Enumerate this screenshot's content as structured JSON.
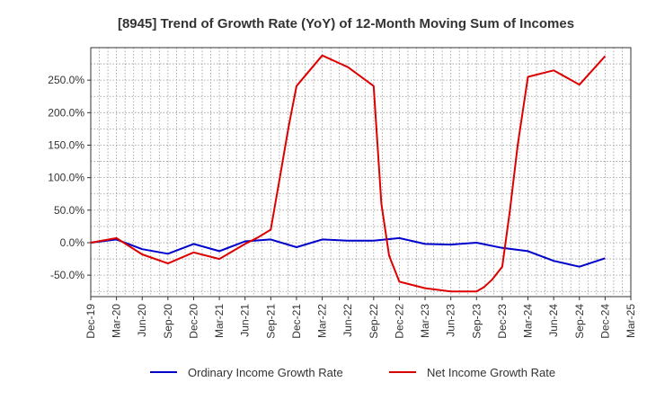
{
  "chart_data": {
    "type": "line",
    "title": "[8945]  Trend of Growth Rate (YoY) of 12-Month Moving Sum of Incomes",
    "xlabel": "",
    "ylabel": "",
    "x_tick_labels": [
      "Dec-19",
      "Mar-20",
      "Jun-20",
      "Sep-20",
      "Dec-20",
      "Mar-21",
      "Jun-21",
      "Sep-21",
      "Dec-21",
      "Mar-22",
      "Jun-22",
      "Sep-22",
      "Dec-22",
      "Mar-23",
      "Jun-23",
      "Sep-23",
      "Dec-23",
      "Mar-24",
      "Jun-24",
      "Sep-24",
      "Dec-24",
      "Mar-25"
    ],
    "y_tick_values": [
      -50,
      0,
      50,
      100,
      150,
      200,
      250
    ],
    "y_tick_labels": [
      "-50.0%",
      "0.0%",
      "50.0%",
      "100.0%",
      "150.0%",
      "200.0%",
      "250.0%"
    ],
    "ylim": [
      -83,
      300
    ],
    "x_range_quarters": [
      0,
      21
    ],
    "grid": true,
    "legend_position": "bottom",
    "series": [
      {
        "name": "Ordinary Income Growth Rate",
        "color": "#0000cc",
        "points": [
          [
            0,
            0
          ],
          [
            1,
            5
          ],
          [
            2,
            -10
          ],
          [
            3,
            -17
          ],
          [
            4,
            -2
          ],
          [
            5,
            -13
          ],
          [
            6,
            2
          ],
          [
            7,
            5
          ],
          [
            8,
            -7
          ],
          [
            9,
            5
          ],
          [
            10,
            3
          ],
          [
            11,
            3
          ],
          [
            12,
            7
          ],
          [
            13,
            -2
          ],
          [
            14,
            -3
          ],
          [
            15,
            0
          ],
          [
            16,
            -8
          ],
          [
            17,
            -13
          ],
          [
            18,
            -28
          ],
          [
            19,
            -37
          ],
          [
            20,
            -24
          ]
        ]
      },
      {
        "name": "Net Income Growth Rate",
        "color": "#dd0000",
        "points": [
          [
            0,
            0
          ],
          [
            1,
            7
          ],
          [
            2,
            -18
          ],
          [
            3,
            -32
          ],
          [
            4,
            -15
          ],
          [
            5,
            -25
          ],
          [
            6,
            -2
          ],
          [
            6.5,
            8
          ],
          [
            7,
            20
          ],
          [
            7.35,
            100
          ],
          [
            7.7,
            180
          ],
          [
            8,
            241
          ],
          [
            9,
            288
          ],
          [
            10,
            270
          ],
          [
            11,
            241
          ],
          [
            11.3,
            60
          ],
          [
            11.6,
            -20
          ],
          [
            12,
            -60
          ],
          [
            13,
            -70
          ],
          [
            14,
            -75
          ],
          [
            15,
            -75
          ],
          [
            15.3,
            -68
          ],
          [
            15.6,
            -57
          ],
          [
            16,
            -37
          ],
          [
            16.3,
            50
          ],
          [
            16.6,
            150
          ],
          [
            17,
            255
          ],
          [
            18,
            265
          ],
          [
            19,
            243
          ],
          [
            20,
            287
          ]
        ]
      }
    ]
  }
}
